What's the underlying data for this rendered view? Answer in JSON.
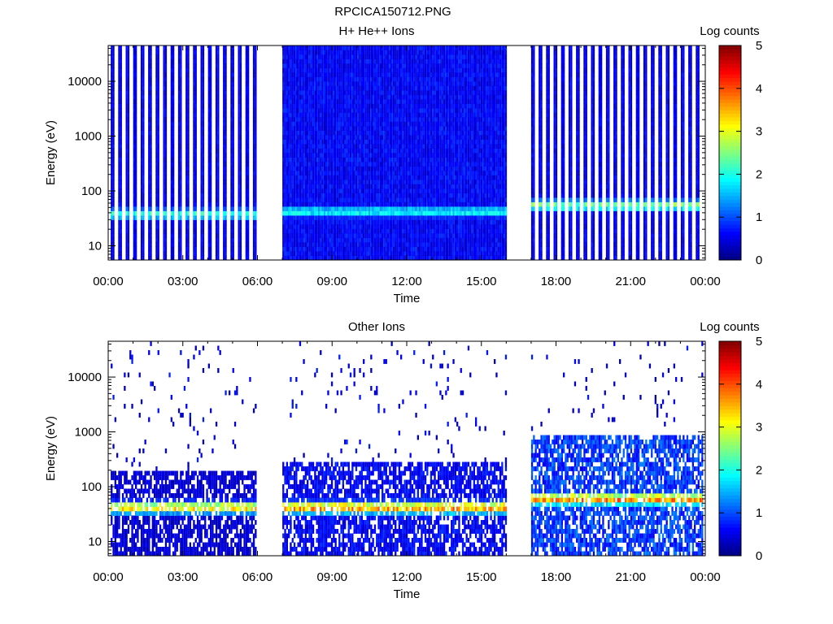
{
  "figure": {
    "title": "RPCICA150712.PNG"
  },
  "chart_data": [
    {
      "type": "heatmap",
      "title": "H+ He++ Ions",
      "xlabel": "Time",
      "ylabel": "Energy (eV)",
      "x_tick_labels": [
        "00:00",
        "03:00",
        "06:00",
        "09:00",
        "12:00",
        "15:00",
        "18:00",
        "21:00",
        "00:00"
      ],
      "x_ticks_hours": [
        0,
        3,
        6,
        9,
        12,
        15,
        18,
        21,
        24
      ],
      "xlim_hours": [
        0,
        24
      ],
      "y_scale": "log",
      "ylim": [
        5.5,
        45000
      ],
      "y_ticks": [
        10,
        100,
        1000,
        10000
      ],
      "y_tick_labels": [
        "10",
        "100",
        "1000",
        "10000"
      ],
      "colorbar": {
        "label": "Log counts",
        "range": [
          0,
          5
        ],
        "ticks": [
          "0",
          "1",
          "2",
          "3",
          "4",
          "5"
        ]
      },
      "data_gaps_hours": [
        [
          5.9,
          7.0
        ],
        [
          15.95,
          17.0
        ]
      ],
      "segments": [
        {
          "start_hour": 0.1,
          "end_hour": 5.9,
          "mode": "striped",
          "peak_energy_ev": 38,
          "peak_log_counts": 2.2,
          "background_log_counts": 0.5,
          "bg_max_energy_ev": 45000
        },
        {
          "start_hour": 7.0,
          "end_hour": 15.95,
          "mode": "dense",
          "peak_energy_ev": 42,
          "peak_log_counts": 2.0,
          "background_log_counts": 0.6,
          "bg_max_energy_ev": 45000
        },
        {
          "start_hour": 17.0,
          "end_hour": 23.9,
          "mode": "striped",
          "peak_energy_ev": 55,
          "peak_log_counts": 2.6,
          "background_log_counts": 0.5,
          "bg_max_energy_ev": 45000
        }
      ]
    },
    {
      "type": "heatmap",
      "title": "Other Ions",
      "xlabel": "Time",
      "ylabel": "Energy (eV)",
      "x_tick_labels": [
        "00:00",
        "03:00",
        "06:00",
        "09:00",
        "12:00",
        "15:00",
        "18:00",
        "21:00",
        "00:00"
      ],
      "x_ticks_hours": [
        0,
        3,
        6,
        9,
        12,
        15,
        18,
        21,
        24
      ],
      "xlim_hours": [
        0,
        24
      ],
      "y_scale": "log",
      "ylim": [
        5.5,
        45000
      ],
      "y_ticks": [
        10,
        100,
        1000,
        10000
      ],
      "y_tick_labels": [
        "10",
        "100",
        "1000",
        "10000"
      ],
      "colorbar": {
        "label": "Log counts",
        "range": [
          0,
          5
        ],
        "ticks": [
          "0",
          "1",
          "2",
          "3",
          "4",
          "5"
        ]
      },
      "data_gaps_hours": [
        [
          5.9,
          7.0
        ],
        [
          15.95,
          17.0
        ]
      ],
      "segments": [
        {
          "start_hour": 0.1,
          "end_hour": 5.9,
          "mode": "sparse",
          "peak_energy_ev": 42,
          "peak_log_counts": 3.5,
          "background_log_counts": 0.4,
          "bg_max_energy_ev": 200
        },
        {
          "start_hour": 7.0,
          "end_hour": 15.95,
          "mode": "sparse-dense",
          "peak_energy_ev": 42,
          "peak_log_counts": 3.9,
          "background_log_counts": 0.6,
          "bg_max_energy_ev": 300
        },
        {
          "start_hour": 17.0,
          "end_hour": 23.9,
          "mode": "sparse",
          "peak_energy_ev": 60,
          "peak_log_counts": 3.9,
          "background_log_counts": 0.9,
          "bg_max_energy_ev": 900
        }
      ]
    }
  ]
}
